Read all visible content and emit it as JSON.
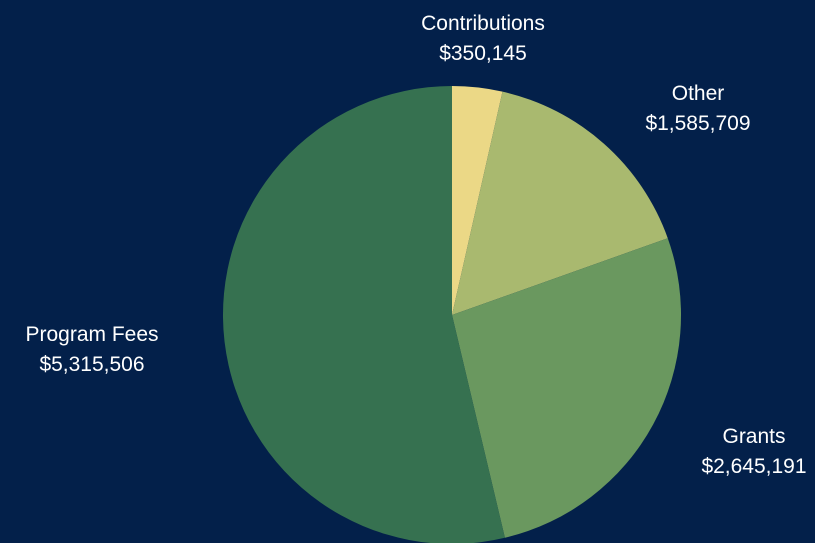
{
  "chart_data": {
    "type": "pie",
    "title": "",
    "slices": [
      {
        "label": "Contributions",
        "value": 350145,
        "value_label": "$350,145",
        "color": "#ebd886"
      },
      {
        "label": "Other",
        "value": 1585709,
        "value_label": "$1,585,709",
        "color": "#a9b96f"
      },
      {
        "label": "Grants",
        "value": 2645191,
        "value_label": "$2,645,191",
        "color": "#6a985f"
      },
      {
        "label": "Program Fees",
        "value": 5315506,
        "value_label": "$5,315,506",
        "color": "#367150"
      }
    ],
    "start_angle": "12 o'clock",
    "direction": "clockwise",
    "legend": "none"
  },
  "colors": {
    "background": "#03204a",
    "label_text": "#ffffff"
  }
}
